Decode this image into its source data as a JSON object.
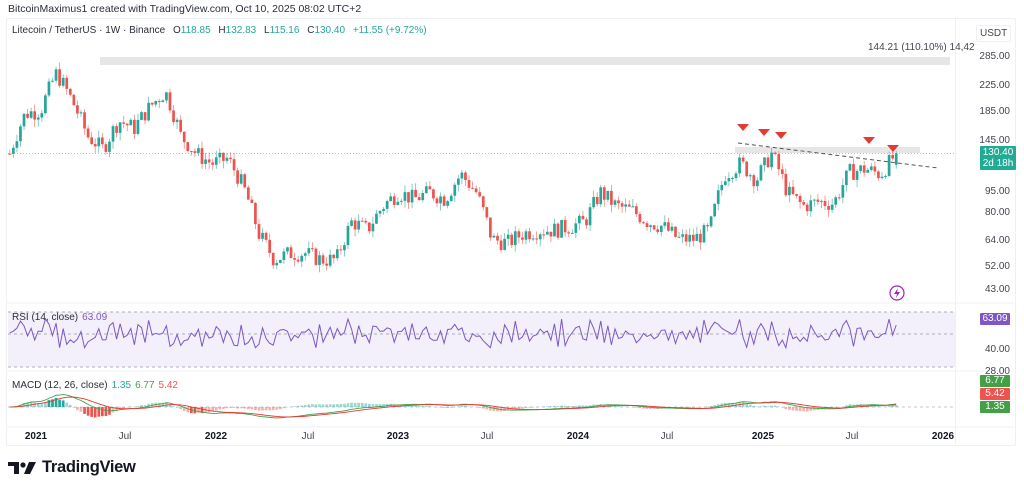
{
  "header": {
    "credit": "BitcoinMaximus1 created with TradingView.com, Oct 10, 2025 08:02 UTC+2"
  },
  "legend": {
    "symbol": "Litecoin / TetherUS · 1W · Binance",
    "open_label": "O",
    "open": "118.85",
    "high_label": "H",
    "high": "132.83",
    "low_label": "L",
    "low": "115.16",
    "close_label": "C",
    "close": "130.40",
    "change": "+11.55 (+9.72%)"
  },
  "price_axis": {
    "unit": "USDT",
    "ticks": [
      "285.00",
      "225.00",
      "185.00",
      "145.00",
      "95.00",
      "80.00",
      "64.00",
      "52.00",
      "43.00"
    ],
    "last_price": "130.40",
    "countdown": "2d 18h",
    "measure_label": "144.21 (110.10%) 14,42"
  },
  "rsi": {
    "label": "RSI (14, close)",
    "value": "63.09",
    "axis_tick": "40.00",
    "axis_tick_low": "28.00"
  },
  "macd": {
    "label": "MACD (12, 26, close)",
    "hist": "1.35",
    "macd": "6.77",
    "signal": "5.42"
  },
  "time_axis": {
    "ticks": [
      {
        "label": "2021",
        "year": true
      },
      {
        "label": "Jul",
        "year": false
      },
      {
        "label": "2022",
        "year": true
      },
      {
        "label": "Jul",
        "year": false
      },
      {
        "label": "2023",
        "year": true
      },
      {
        "label": "Jul",
        "year": false
      },
      {
        "label": "2024",
        "year": true
      },
      {
        "label": "Jul",
        "year": false
      },
      {
        "label": "2025",
        "year": true
      },
      {
        "label": "Jul",
        "year": false
      },
      {
        "label": "2026",
        "year": true
      }
    ]
  },
  "brand": {
    "name": "TradingView"
  },
  "colors": {
    "up": "#26a69a",
    "down": "#ef5350",
    "rsi_line": "#7e57c2",
    "rsi_band": "#f3f0fb",
    "macd_line": "#43a047",
    "signal_line": "#e53935",
    "marker": "#e53935",
    "price_tag": "#22ab94"
  },
  "chart_data": {
    "type": "candlestick",
    "title": "Litecoin / TetherUS · 1W · Binance",
    "xlabel": "",
    "ylabel": "USDT",
    "x_range": [
      "2021-01",
      "2025-10"
    ],
    "ylim": [
      40,
      320
    ],
    "y_scale": "log",
    "x": [
      "2021-01",
      "2021-02",
      "2021-03",
      "2021-04",
      "2021-05",
      "2021-06",
      "2021-07",
      "2021-08",
      "2021-09",
      "2021-10",
      "2021-11",
      "2021-12",
      "2022-01",
      "2022-02",
      "2022-03",
      "2022-04",
      "2022-05",
      "2022-06",
      "2022-07",
      "2022-08",
      "2022-09",
      "2022-10",
      "2022-11",
      "2022-12",
      "2023-01",
      "2023-02",
      "2023-03",
      "2023-04",
      "2023-05",
      "2023-06",
      "2023-07",
      "2023-08",
      "2023-09",
      "2023-10",
      "2023-11",
      "2023-12",
      "2024-01",
      "2024-02",
      "2024-03",
      "2024-04",
      "2024-05",
      "2024-06",
      "2024-07",
      "2024-08",
      "2024-09",
      "2024-10",
      "2024-11",
      "2024-12",
      "2025-01",
      "2025-02",
      "2025-03",
      "2025-04",
      "2025-05",
      "2025-06",
      "2025-07",
      "2025-08",
      "2025-09",
      "2025-10"
    ],
    "close_approx": [
      130,
      180,
      185,
      250,
      200,
      150,
      135,
      170,
      160,
      190,
      215,
      150,
      130,
      120,
      125,
      100,
      68,
      55,
      58,
      58,
      55,
      55,
      75,
      70,
      85,
      95,
      90,
      95,
      90,
      110,
      95,
      65,
      63,
      68,
      70,
      70,
      72,
      75,
      95,
      85,
      82,
      75,
      72,
      65,
      65,
      70,
      110,
      120,
      105,
      130,
      95,
      85,
      88,
      87,
      112,
      115,
      110,
      130
    ],
    "annotations": [
      "Horizontal resistance zone ~285",
      "Descending dashed trendline from ~140 (Dec 2024) to ~112 (Nov 2025)",
      "Resistance zone ~130-132",
      "Red down-arrow markers at local highs: Dec 2024, Jan 2025 (x2), Aug 2025, Oct 2025",
      "Measure label: 144.21 (110.10%) 14,42"
    ],
    "last": {
      "open": 118.85,
      "high": 132.83,
      "low": 115.16,
      "close": 130.4,
      "change": 11.55,
      "change_pct": 9.72
    },
    "indicators": [
      {
        "name": "RSI (14, close)",
        "value": 63.09,
        "levels": [
          70,
          50,
          30
        ]
      },
      {
        "name": "MACD (12, 26, close)",
        "histogram": 1.35,
        "macd": 6.77,
        "signal": 5.42
      }
    ]
  }
}
